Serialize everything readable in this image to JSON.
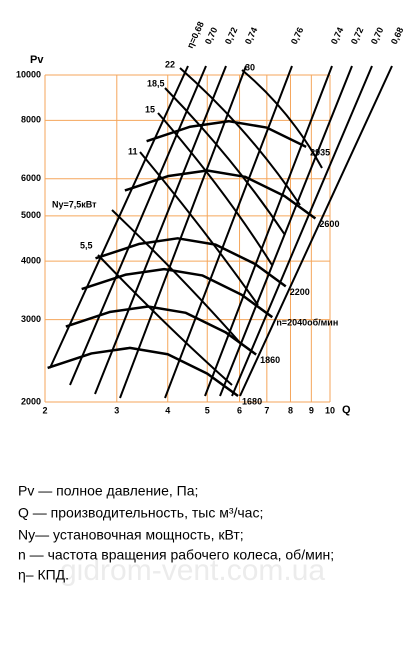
{
  "chart_data": {
    "type": "line",
    "y_label": "Pv",
    "x_label": "Q",
    "xlim": [
      2,
      10
    ],
    "ylim": [
      2000,
      10000
    ],
    "log_x": true,
    "log_y": true,
    "grid": true,
    "grid_color": "#f5a65b",
    "line_color": "#000000",
    "xticks": [
      2,
      3,
      4,
      5,
      6,
      7,
      8,
      9,
      10
    ],
    "yticks": [
      2000,
      3000,
      4000,
      5000,
      6000,
      8000,
      10000
    ],
    "series": [
      {
        "name": "1680",
        "x": [
          2.03,
          2.6,
          3.23,
          4.0,
          5.0,
          5.95
        ],
        "values": [
          2365,
          2540,
          2610,
          2530,
          2300,
          2060
        ]
      },
      {
        "name": "1860",
        "x": [
          2.25,
          2.88,
          3.58,
          4.43,
          5.54,
          6.59
        ],
        "values": [
          2900,
          3114,
          3200,
          3102,
          2820,
          2526
        ]
      },
      {
        "name": "n=2040об/мин",
        "x": [
          2.46,
          3.16,
          3.92,
          4.86,
          6.07,
          7.22
        ],
        "values": [
          3486,
          3744,
          3847,
          3729,
          3390,
          3036
        ]
      },
      {
        "name": "2200",
        "x": [
          2.66,
          3.41,
          4.23,
          5.24,
          6.55,
          7.79
        ],
        "values": [
          4056,
          4356,
          4476,
          4339,
          3945,
          3533
        ]
      },
      {
        "name": "2600",
        "x": [
          3.14,
          4.02,
          5.0,
          6.19,
          7.74,
          9.21
        ],
        "values": [
          5664,
          6083,
          6251,
          6059,
          5509,
          4934
        ]
      },
      {
        "name": "2935",
        "x": [
          3.55,
          4.54,
          5.64,
          6.99,
          8.74
        ],
        "values": [
          7218,
          7752,
          7966,
          7721,
          7020
        ]
      }
    ],
    "efficiency_labels": [
      "η=0,68",
      "0,70",
      "0,72",
      "0,74",
      "0,76",
      "0,74",
      "0,72",
      "0,70",
      "0,68"
    ],
    "power_labels": [
      "30",
      "22",
      "18,5",
      "15",
      "11",
      "Ny=7,5кВт",
      "5,5"
    ]
  },
  "legend_notes": [
    "Pv — полное давление, Па;",
    "Q — производительность, тыс м³/час;",
    "Ny— установочная мощность, кВт;",
    "n — частота вращения рабочего колеса, об/мин;",
    "η– КПД."
  ],
  "watermark": "gidrom-vent.com.ua"
}
